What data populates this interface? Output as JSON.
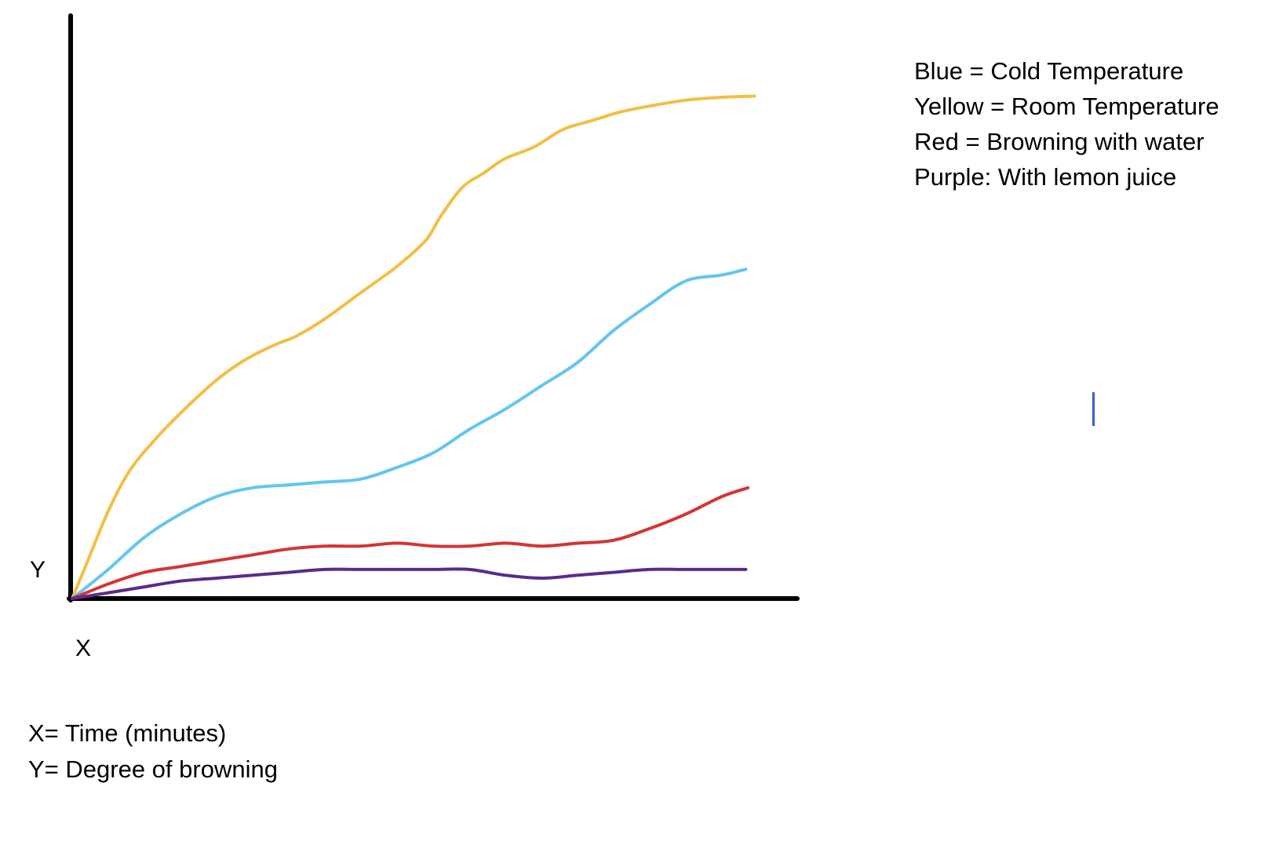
{
  "chart_data": {
    "type": "line",
    "x_axis_letter": "X",
    "y_axis_letter": "Y",
    "x_axis_definition": "X= Time (minutes)",
    "y_axis_definition": "Y= Degree of browning",
    "legend": [
      "Blue = Cold Temperature",
      "Yellow = Room Temperature",
      "Red = Browning with water",
      "Purple: With lemon juice"
    ],
    "xlim": [
      0,
      100
    ],
    "ylim": [
      0,
      100
    ],
    "grid": false,
    "series": [
      {
        "name": "Yellow = Room Temperature",
        "color": "#f2bf44",
        "x": [
          0,
          2,
          5,
          8,
          12,
          16,
          20,
          24,
          28,
          31,
          35,
          40,
          45,
          49,
          51,
          54,
          57,
          60,
          64,
          68,
          72,
          76,
          80,
          85,
          90,
          94.5
        ],
        "y": [
          0,
          6,
          15,
          22,
          28,
          33,
          37.5,
          41,
          43.5,
          45,
          48,
          52.5,
          57,
          61.5,
          65.5,
          70.5,
          73,
          75.5,
          77.5,
          80.5,
          82,
          83.5,
          84.5,
          85.5,
          86,
          86.2
        ]
      },
      {
        "name": "Blue = Cold Temperature",
        "color": "#63c6ef",
        "x": [
          0,
          5,
          10,
          15,
          20,
          25,
          30,
          35,
          40,
          45,
          50,
          55,
          60,
          65,
          70,
          75,
          80,
          85,
          90,
          93.3
        ],
        "y": [
          0,
          5,
          10.5,
          14.5,
          17.5,
          19,
          19.5,
          20,
          20.5,
          22.5,
          25,
          29,
          32.5,
          36.5,
          40.5,
          46,
          50.5,
          54.5,
          55.5,
          56.5
        ]
      },
      {
        "name": "Red = Browning with water",
        "color": "#d43434",
        "x": [
          0,
          5,
          10,
          15,
          20,
          25,
          30,
          35,
          40,
          45,
          50,
          55,
          60,
          65,
          70,
          75,
          80,
          85,
          90,
          93.6
        ],
        "y": [
          0,
          2.5,
          4.5,
          5.5,
          6.5,
          7.5,
          8.5,
          9,
          9,
          9.5,
          9,
          9,
          9.5,
          9,
          9.5,
          10,
          12,
          14.5,
          17.5,
          19
        ]
      },
      {
        "name": "Purple: With lemon juice",
        "color": "#5b2a8c",
        "x": [
          0,
          5,
          10,
          15,
          20,
          25,
          30,
          35,
          40,
          45,
          50,
          55,
          60,
          65,
          70,
          75,
          80,
          85,
          90,
          93.3
        ],
        "y": [
          0,
          1,
          2,
          3,
          3.5,
          4,
          4.5,
          5,
          5,
          5,
          5,
          5,
          4,
          3.5,
          4,
          4.5,
          5,
          5,
          5,
          5
        ]
      }
    ]
  },
  "cursor_color": "#3b5bdb"
}
